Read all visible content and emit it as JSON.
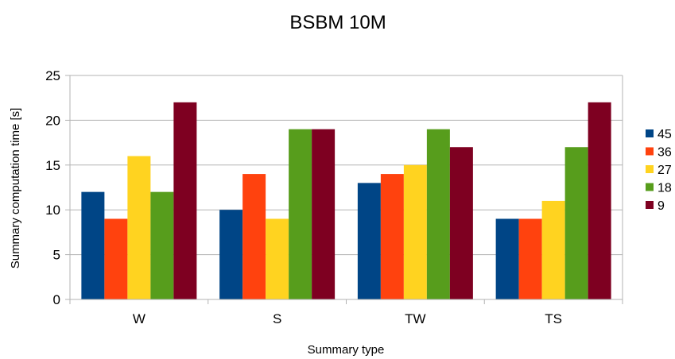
{
  "chart_data": {
    "type": "bar",
    "title": "BSBM 10M",
    "xlabel": "Summary type",
    "ylabel": "Summary computation time [s]",
    "categories": [
      "W",
      "S",
      "TW",
      "TS"
    ],
    "ylim": [
      0,
      25
    ],
    "yticks": [
      0,
      5,
      10,
      15,
      20,
      25
    ],
    "grid": true,
    "legend_position": "right",
    "series": [
      {
        "name": "45",
        "color": "#004586",
        "values": [
          12,
          10,
          13,
          9
        ]
      },
      {
        "name": "36",
        "color": "#ff420e",
        "values": [
          9,
          14,
          14,
          9
        ]
      },
      {
        "name": "27",
        "color": "#ffd320",
        "values": [
          16,
          9,
          15,
          11
        ]
      },
      {
        "name": "18",
        "color": "#579d1c",
        "values": [
          12,
          19,
          19,
          17
        ]
      },
      {
        "name": "9",
        "color": "#7e0021",
        "values": [
          22,
          19,
          17,
          22
        ]
      }
    ]
  }
}
